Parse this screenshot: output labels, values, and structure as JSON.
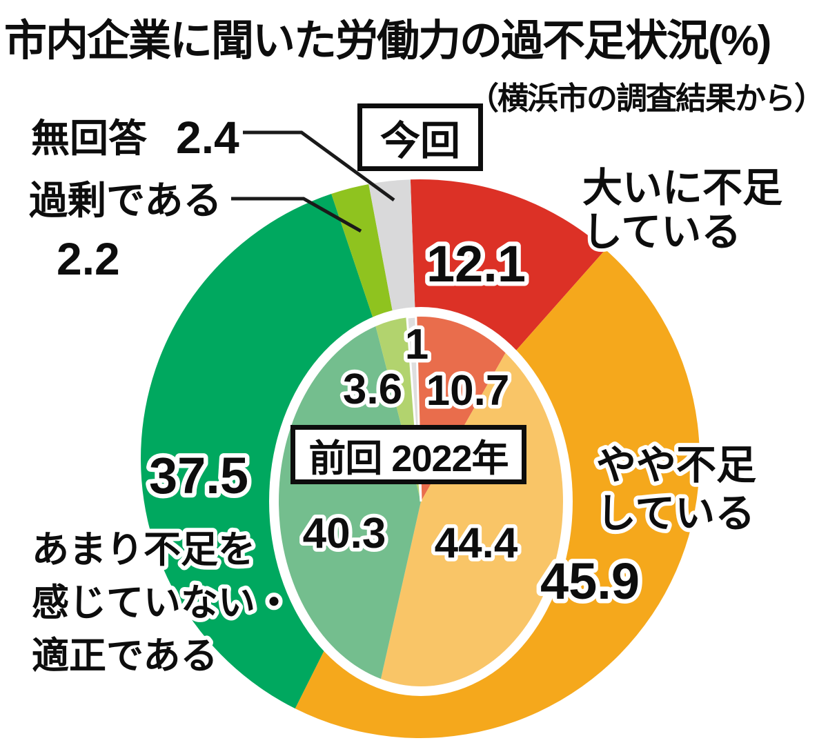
{
  "title": "市内企業に聞いた労働力の過不足状況(%)",
  "subtitle": "（横浜市の調査結果から）",
  "period_labels": {
    "current": "今回",
    "previous": "前回 2022年"
  },
  "callouts": {
    "severe": [
      "大いに不足",
      "している"
    ],
    "slight": [
      "やや不足",
      "している"
    ],
    "adequate": [
      "あまり不足を",
      "感じていない・",
      "適正である"
    ],
    "surplus": "過剰である",
    "surplus_value": "2.2",
    "no_answer": "無回答",
    "no_answer_value": "2.4"
  },
  "chart_data": {
    "type": "pie",
    "unit": "%",
    "title": "市内企業に聞いた労働力の過不足状況(%)",
    "source_note": "横浜市の調査結果から",
    "start_angle_deg": -2,
    "legend_position": "outer ring = 今回 (current survey), inner ellipse = 前回 2022年 (previous survey)",
    "rings": [
      {
        "name": "今回",
        "position": "outer",
        "segments": [
          {
            "id": "severe_shortage",
            "label": "大いに不足している",
            "value": 12.1,
            "color": "#DC3126"
          },
          {
            "id": "slight_shortage",
            "label": "やや不足している",
            "value": 45.9,
            "color": "#F5A81C"
          },
          {
            "id": "adequate",
            "label": "あまり不足を感じていない・適正である",
            "value": 37.5,
            "color": "#00A85F"
          },
          {
            "id": "surplus",
            "label": "過剰である",
            "value": 2.2,
            "color": "#8FC31F"
          },
          {
            "id": "no_answer",
            "label": "無回答",
            "value": 2.4,
            "color": "#D9D9DA"
          }
        ]
      },
      {
        "name": "前回 2022年",
        "position": "inner",
        "segments": [
          {
            "id": "severe_shortage",
            "label": "大いに不足している",
            "value": 10.7,
            "color": "#E96D4C"
          },
          {
            "id": "slight_shortage",
            "label": "やや不足している",
            "value": 44.4,
            "color": "#F9C567"
          },
          {
            "id": "adequate",
            "label": "あまり不足を感じていない・適正である",
            "value": 40.3,
            "color": "#74BE8E"
          },
          {
            "id": "surplus",
            "label": "過剰である",
            "value": 3.6,
            "color": "#B2D36E"
          },
          {
            "id": "no_answer",
            "label": "無回答",
            "value": 1.0,
            "color": "#DEDEDE"
          }
        ]
      }
    ]
  }
}
